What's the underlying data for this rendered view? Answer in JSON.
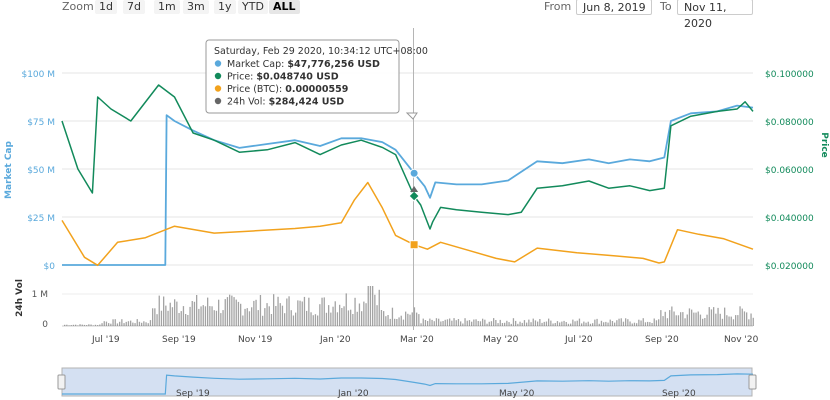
{
  "toolbar": {
    "zoom_label": "Zoom",
    "zoom_buttons": [
      "1d",
      "7d",
      "1m",
      "3m",
      "1y",
      "YTD",
      "ALL"
    ],
    "active_zoom": "ALL",
    "from_label": "From",
    "from_value": "Jun 8, 2019",
    "to_label": "To",
    "to_value": "Nov 11, 2020"
  },
  "colors": {
    "market_cap": "#5aa9dc",
    "price": "#128a5b",
    "price_btc": "#f2a21d",
    "volume": "#666666",
    "navigator_fill": "#d4e0f2"
  },
  "chart_data": {
    "type": "line",
    "x_labels": [
      "Jul '19",
      "Sep '19",
      "Nov '19",
      "Jan '20",
      "Mar '20",
      "May '20",
      "Jul '20",
      "Sep '20",
      "Nov '20"
    ],
    "navigator_labels": [
      "Sep '19",
      "Jan '20",
      "May '20",
      "Sep '20"
    ],
    "left_axis": {
      "title": "Market Cap",
      "ticks": [
        "$100 M",
        "$75 M",
        "$50 M",
        "$25 M",
        "$0"
      ],
      "range": [
        0,
        100
      ]
    },
    "right_axis": {
      "title": "Price",
      "ticks": [
        "$0.100000",
        "$0.080000",
        "$0.060000",
        "$0.040000",
        "$0.020000"
      ],
      "range": [
        0.02,
        0.1
      ]
    },
    "volume_axis": {
      "title": "24h Vol",
      "ticks": [
        "1 M",
        "0"
      ]
    },
    "series": [
      {
        "name": "Market Cap",
        "unit": "USD millions",
        "x": [
          "2019-06-08",
          "2019-08-25",
          "2019-08-26",
          "2019-09-01",
          "2019-09-15",
          "2019-10-01",
          "2019-10-20",
          "2019-11-10",
          "2019-12-01",
          "2019-12-20",
          "2020-01-05",
          "2020-01-20",
          "2020-02-05",
          "2020-02-15",
          "2020-02-29",
          "2020-03-08",
          "2020-03-12",
          "2020-03-16",
          "2020-04-01",
          "2020-04-20",
          "2020-05-10",
          "2020-06-01",
          "2020-06-20",
          "2020-07-10",
          "2020-07-25",
          "2020-08-10",
          "2020-08-25",
          "2020-09-05",
          "2020-09-10",
          "2020-09-25",
          "2020-10-15",
          "2020-10-30",
          "2020-11-11"
        ],
        "y": [
          0,
          0,
          78,
          75,
          70,
          65,
          61,
          63,
          65,
          62,
          66,
          66,
          64,
          60,
          47.8,
          41,
          35,
          43,
          42,
          42,
          44,
          54,
          53,
          55,
          53,
          55,
          54,
          56,
          75,
          79,
          80,
          83,
          82
        ]
      },
      {
        "name": "Price",
        "unit": "USD",
        "x": [
          "2019-06-08",
          "2019-06-20",
          "2019-07-01",
          "2019-07-05",
          "2019-07-15",
          "2019-07-30",
          "2019-08-20",
          "2019-09-01",
          "2019-09-15",
          "2019-10-01",
          "2019-10-20",
          "2019-11-10",
          "2019-12-01",
          "2019-12-20",
          "2020-01-05",
          "2020-01-20",
          "2020-02-05",
          "2020-02-15",
          "2020-02-29",
          "2020-03-05",
          "2020-03-12",
          "2020-03-14",
          "2020-03-20",
          "2020-04-01",
          "2020-04-20",
          "2020-05-10",
          "2020-05-20",
          "2020-06-01",
          "2020-06-20",
          "2020-07-10",
          "2020-07-25",
          "2020-08-10",
          "2020-08-25",
          "2020-09-05",
          "2020-09-10",
          "2020-09-25",
          "2020-10-15",
          "2020-10-30",
          "2020-11-05",
          "2020-11-11"
        ],
        "y": [
          0.08,
          0.06,
          0.05,
          0.09,
          0.085,
          0.08,
          0.095,
          0.09,
          0.075,
          0.072,
          0.067,
          0.068,
          0.071,
          0.066,
          0.07,
          0.072,
          0.069,
          0.066,
          0.04874,
          0.045,
          0.035,
          0.038,
          0.044,
          0.043,
          0.042,
          0.041,
          0.042,
          0.052,
          0.053,
          0.055,
          0.052,
          0.053,
          0.051,
          0.052,
          0.078,
          0.082,
          0.084,
          0.085,
          0.088,
          0.084
        ]
      },
      {
        "name": "Price (BTC)",
        "unit": "BTC",
        "x": [
          "2019-06-08",
          "2019-06-25",
          "2019-07-05",
          "2019-07-20",
          "2019-08-10",
          "2019-09-01",
          "2019-10-01",
          "2019-11-01",
          "2019-12-01",
          "2019-12-20",
          "2020-01-05",
          "2020-01-15",
          "2020-01-25",
          "2020-02-05",
          "2020-02-15",
          "2020-02-29",
          "2020-03-10",
          "2020-03-20",
          "2020-04-10",
          "2020-05-01",
          "2020-05-15",
          "2020-06-01",
          "2020-07-01",
          "2020-08-01",
          "2020-08-20",
          "2020-09-01",
          "2020-09-05",
          "2020-09-15",
          "2020-10-01",
          "2020-10-20",
          "2020-11-11"
        ],
        "y": [
          7.7e-06,
          4.5e-06,
          3.8e-06,
          5.8e-06,
          6.2e-06,
          7.2e-06,
          6.6e-06,
          6.8e-06,
          7e-06,
          7.2e-06,
          7.5e-06,
          9.5e-06,
          1.1e-05,
          8.8e-06,
          6.4e-06,
          5.59e-06,
          5.2e-06,
          5.8e-06,
          5.1e-06,
          4.4e-06,
          4.1e-06,
          5.3e-06,
          4.9e-06,
          4.6e-06,
          4.4e-06,
          4e-06,
          4.1e-06,
          6.9e-06,
          6.5e-06,
          6.1e-06,
          5.2e-06
        ]
      }
    ],
    "tooltip": {
      "date": "Saturday, Feb 29 2020, 10:34:12 UTC+08:00",
      "rows": [
        {
          "label": "Market Cap:",
          "value": "$47,776,256 USD",
          "color": "#5aa9dc"
        },
        {
          "label": "Price:",
          "value": "$0.048740 USD",
          "color": "#128a5b"
        },
        {
          "label": "Price (BTC):",
          "value": "0.00000559",
          "color": "#f2a21d"
        },
        {
          "label": "24h Vol:",
          "value": "$284,424 USD",
          "color": "#666666"
        }
      ]
    },
    "legend": "none",
    "grid": true
  }
}
